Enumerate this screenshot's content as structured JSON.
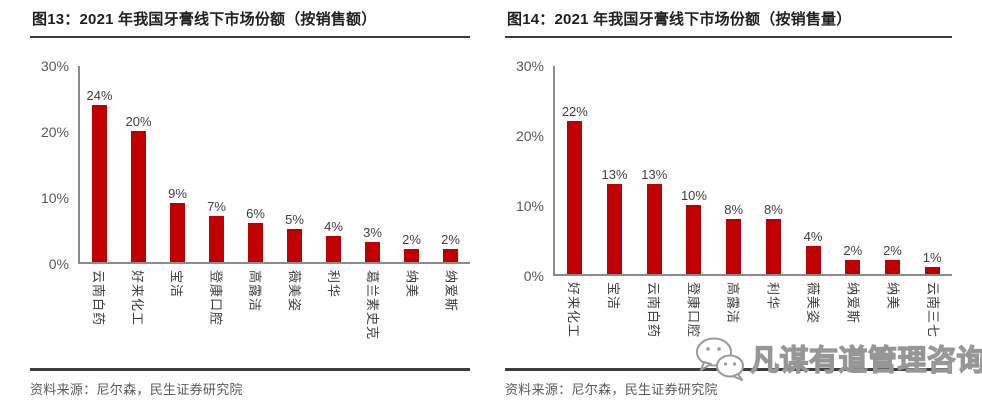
{
  "page": {
    "background": "#ffffff"
  },
  "watermark": {
    "text": "凡谋有道管理咨询",
    "icon": "wechat-icon"
  },
  "chart_data": [
    {
      "type": "bar",
      "title": "图13：2021 年我国牙膏线下市场份额（按销售额）",
      "categories": [
        "云南白药",
        "好来化工",
        "宝洁",
        "登康口腔",
        "高露洁",
        "薇美姿",
        "利华",
        "葛兰素史克",
        "纳美",
        "纳爱斯"
      ],
      "values": [
        24,
        20,
        9,
        7,
        6,
        5,
        4,
        3,
        2,
        2
      ],
      "value_labels": [
        "24%",
        "20%",
        "9%",
        "7%",
        "6%",
        "5%",
        "4%",
        "3%",
        "2%",
        "2%"
      ],
      "ylim": [
        0,
        30
      ],
      "ytick_labels": [
        "30%",
        "20%",
        "10%",
        "0%"
      ],
      "bar_color": "#c00000",
      "grid": false,
      "legend_position": "none",
      "source": "资料来源：尼尔森，民生证券研究院"
    },
    {
      "type": "bar",
      "title": "图14：2021 年我国牙膏线下市场份额（按销售量）",
      "categories": [
        "好来化工",
        "宝洁",
        "云南白药",
        "登康口腔",
        "高露洁",
        "利华",
        "薇美姿",
        "纳爱斯",
        "纳美",
        "云南三七"
      ],
      "values": [
        22,
        13,
        13,
        10,
        8,
        8,
        4,
        2,
        2,
        1
      ],
      "value_labels": [
        "22%",
        "13%",
        "13%",
        "10%",
        "8%",
        "8%",
        "4%",
        "2%",
        "2%",
        "1%"
      ],
      "ylim": [
        0,
        30
      ],
      "ytick_labels": [
        "30%",
        "20%",
        "10%",
        "0%"
      ],
      "bar_color": "#c00000",
      "grid": false,
      "legend_position": "none",
      "source": "资料来源：尼尔森，民生证券研究院"
    }
  ]
}
